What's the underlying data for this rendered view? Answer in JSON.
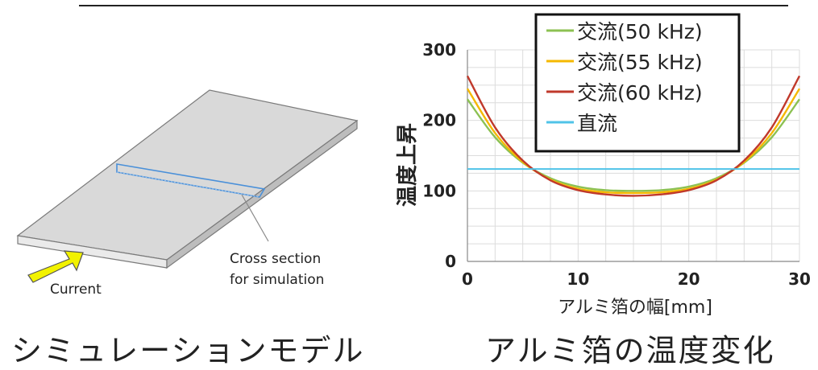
{
  "left_panel": {
    "caption": "シミュレーションモデル",
    "labels": {
      "current": "Current",
      "cross_section_line1": "Cross section",
      "cross_section_line2": "for simulation"
    },
    "colors": {
      "arrow": "#f2f200",
      "section": "#4a90d9",
      "plate": "#d9d9d9"
    }
  },
  "right_panel": {
    "caption": "アルミ箔の温度変化"
  },
  "chart_data": {
    "type": "line",
    "xlabel": "アルミ箔の幅[mm]",
    "ylabel": "温度上昇",
    "xlim": [
      0,
      30
    ],
    "ylim": [
      0,
      300
    ],
    "xticks": [
      0,
      10,
      20,
      30
    ],
    "yticks": [
      0,
      100,
      200,
      300
    ],
    "grid": true,
    "legend_position": "top-right",
    "series": [
      {
        "name": "交流(50 kHz)",
        "color": "#8cc152",
        "x": [
          0,
          2.5,
          5,
          7.5,
          10,
          12.5,
          15,
          17.5,
          20,
          22.5,
          25,
          27.5,
          30
        ],
        "y": [
          230,
          176,
          140,
          118,
          106,
          101,
          100,
          101,
          106,
          118,
          140,
          176,
          230
        ]
      },
      {
        "name": "交流(55 kHz)",
        "color": "#f5b800",
        "x": [
          0,
          2.5,
          5,
          7.5,
          10,
          12.5,
          15,
          17.5,
          20,
          22.5,
          25,
          27.5,
          30
        ],
        "y": [
          245,
          182,
          141,
          116,
          103,
          98,
          97,
          98,
          103,
          116,
          141,
          182,
          245
        ]
      },
      {
        "name": "交流(60 kHz)",
        "color": "#c0392b",
        "x": [
          0,
          2.5,
          5,
          7.5,
          10,
          12.5,
          15,
          17.5,
          20,
          22.5,
          25,
          27.5,
          30
        ],
        "y": [
          263,
          190,
          143,
          115,
          101,
          95,
          93,
          95,
          101,
          115,
          143,
          190,
          263
        ]
      },
      {
        "name": "直流",
        "color": "#4fc3e8",
        "x": [
          0,
          30
        ],
        "y": [
          131,
          131
        ]
      }
    ]
  }
}
